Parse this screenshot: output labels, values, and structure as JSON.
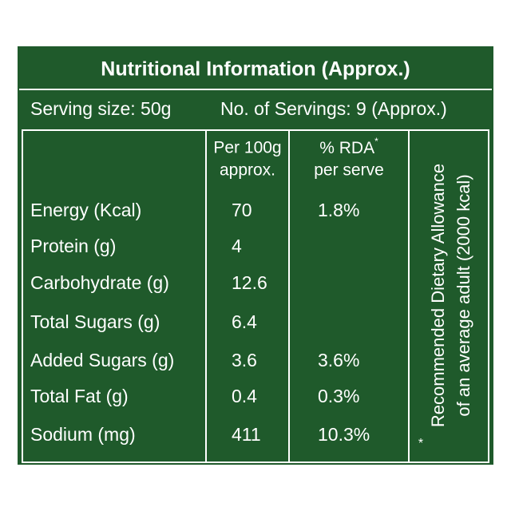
{
  "title": "Nutritional Information (Approx.)",
  "serving": {
    "size": "Serving size: 50g",
    "count": "No. of Servings: 9 (Approx.)"
  },
  "table": {
    "header": {
      "per100": [
        "Per 100g",
        "approx."
      ],
      "rda": {
        "text": "% RDA",
        "mark": "*",
        "line2": "per serve"
      }
    },
    "rows": [
      [
        "Energy (Kcal)",
        "70",
        "1.8%"
      ],
      [
        "Protein (g)",
        "4",
        null
      ],
      [
        "Carbohydrate (g)",
        "12.6",
        null
      ],
      [
        "Total Sugars (g)",
        "6.4",
        null
      ],
      [
        "Added Sugars (g)",
        "3.6",
        "3.6%"
      ],
      [
        "Total Fat (g)",
        "0.4",
        "0.3%"
      ],
      [
        "Sodium (mg)",
        "411",
        "10.3%"
      ]
    ],
    "note": {
      "mark": "*",
      "lines": [
        "Recommended Dietary Allowance",
        "of an average adult (2000 kcal)"
      ]
    }
  }
}
